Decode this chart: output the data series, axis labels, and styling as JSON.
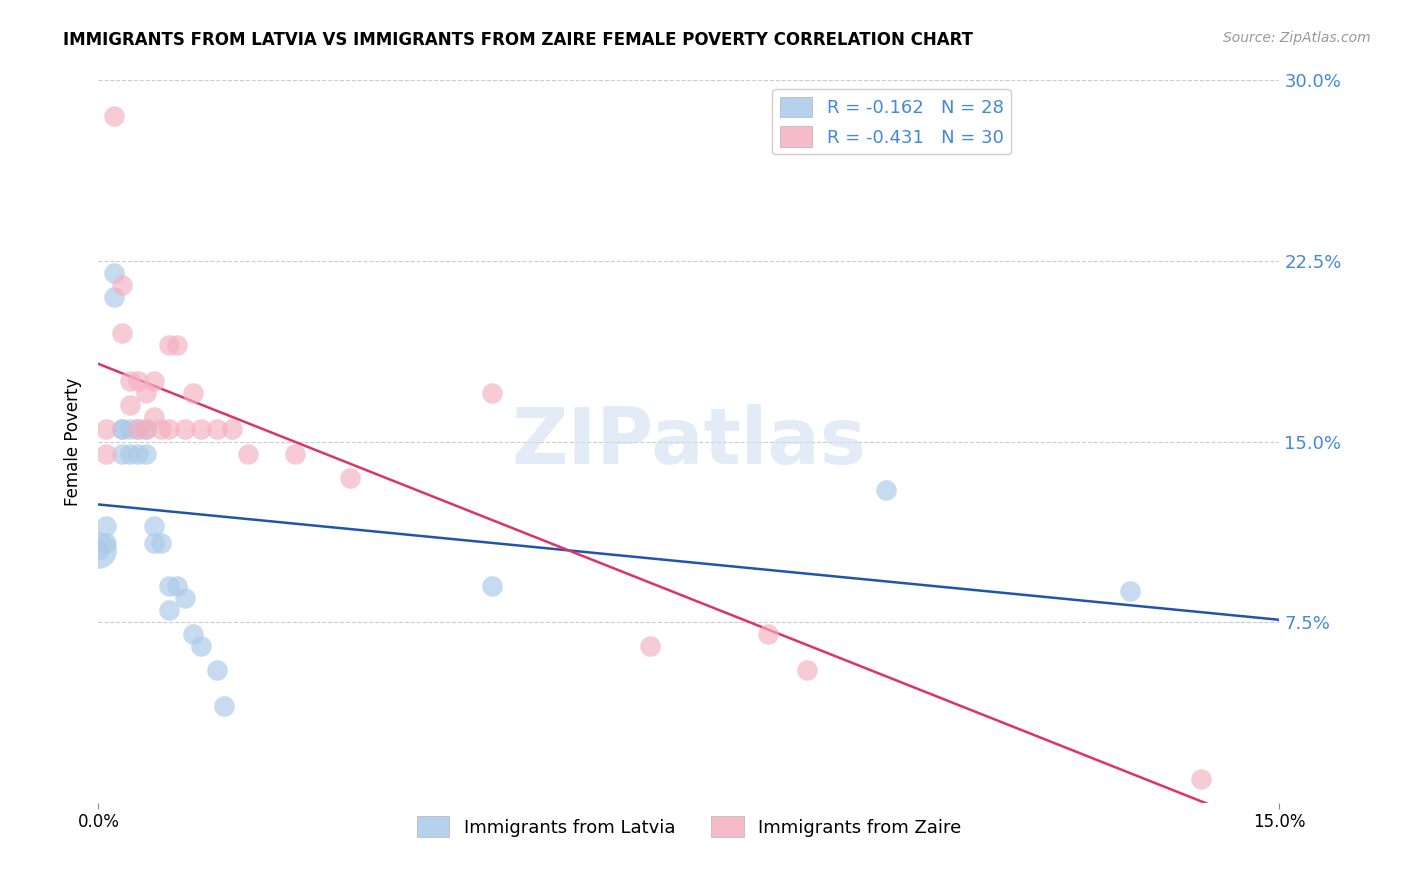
{
  "title": "IMMIGRANTS FROM LATVIA VS IMMIGRANTS FROM ZAIRE FEMALE POVERTY CORRELATION CHART",
  "source": "Source: ZipAtlas.com",
  "ylabel": "Female Poverty",
  "x_min": 0.0,
  "x_max": 0.15,
  "y_min": 0.0,
  "y_max": 0.3,
  "right_y_ticks": [
    0.0,
    0.075,
    0.15,
    0.225,
    0.3
  ],
  "right_y_labels": [
    "",
    "7.5%",
    "15.0%",
    "22.5%",
    "30.0%"
  ],
  "x_tick_vals": [
    0.0,
    0.15
  ],
  "x_tick_labels": [
    "0.0%",
    "15.0%"
  ],
  "watermark": "ZIPatlas",
  "blue_color": "#aac9e8",
  "pink_color": "#f4afc0",
  "blue_line_color": "#2255aa",
  "pink_line_color": "#dd3366",
  "grid_color": "#cccccc",
  "right_axis_color": "#4488dd",
  "bottom_legend_labels": [
    "Immigrants from Latvia",
    "Immigrants from Zaire"
  ],
  "top_legend_labels": [
    "R = -0.162   N = 28",
    "R = -0.431   N = 30"
  ],
  "latvia_x": [
    0.0,
    0.001,
    0.001,
    0.002,
    0.002,
    0.003,
    0.003,
    0.003,
    0.004,
    0.004,
    0.005,
    0.005,
    0.006,
    0.006,
    0.007,
    0.007,
    0.008,
    0.009,
    0.009,
    0.01,
    0.011,
    0.012,
    0.013,
    0.015,
    0.016,
    0.05,
    0.1,
    0.131
  ],
  "latvia_y": [
    0.105,
    0.115,
    0.108,
    0.22,
    0.21,
    0.155,
    0.155,
    0.145,
    0.155,
    0.145,
    0.155,
    0.145,
    0.155,
    0.145,
    0.115,
    0.108,
    0.108,
    0.09,
    0.08,
    0.09,
    0.085,
    0.07,
    0.065,
    0.055,
    0.04,
    0.09,
    0.13,
    0.088
  ],
  "zaire_x": [
    0.001,
    0.001,
    0.002,
    0.003,
    0.003,
    0.004,
    0.004,
    0.005,
    0.005,
    0.006,
    0.006,
    0.007,
    0.007,
    0.008,
    0.009,
    0.009,
    0.01,
    0.011,
    0.012,
    0.013,
    0.015,
    0.017,
    0.019,
    0.025,
    0.032,
    0.05,
    0.07,
    0.085,
    0.09,
    0.14
  ],
  "zaire_y": [
    0.155,
    0.145,
    0.285,
    0.215,
    0.195,
    0.175,
    0.165,
    0.155,
    0.175,
    0.155,
    0.17,
    0.175,
    0.16,
    0.155,
    0.19,
    0.155,
    0.19,
    0.155,
    0.17,
    0.155,
    0.155,
    0.155,
    0.145,
    0.145,
    0.135,
    0.17,
    0.065,
    0.07,
    0.055,
    0.01
  ]
}
